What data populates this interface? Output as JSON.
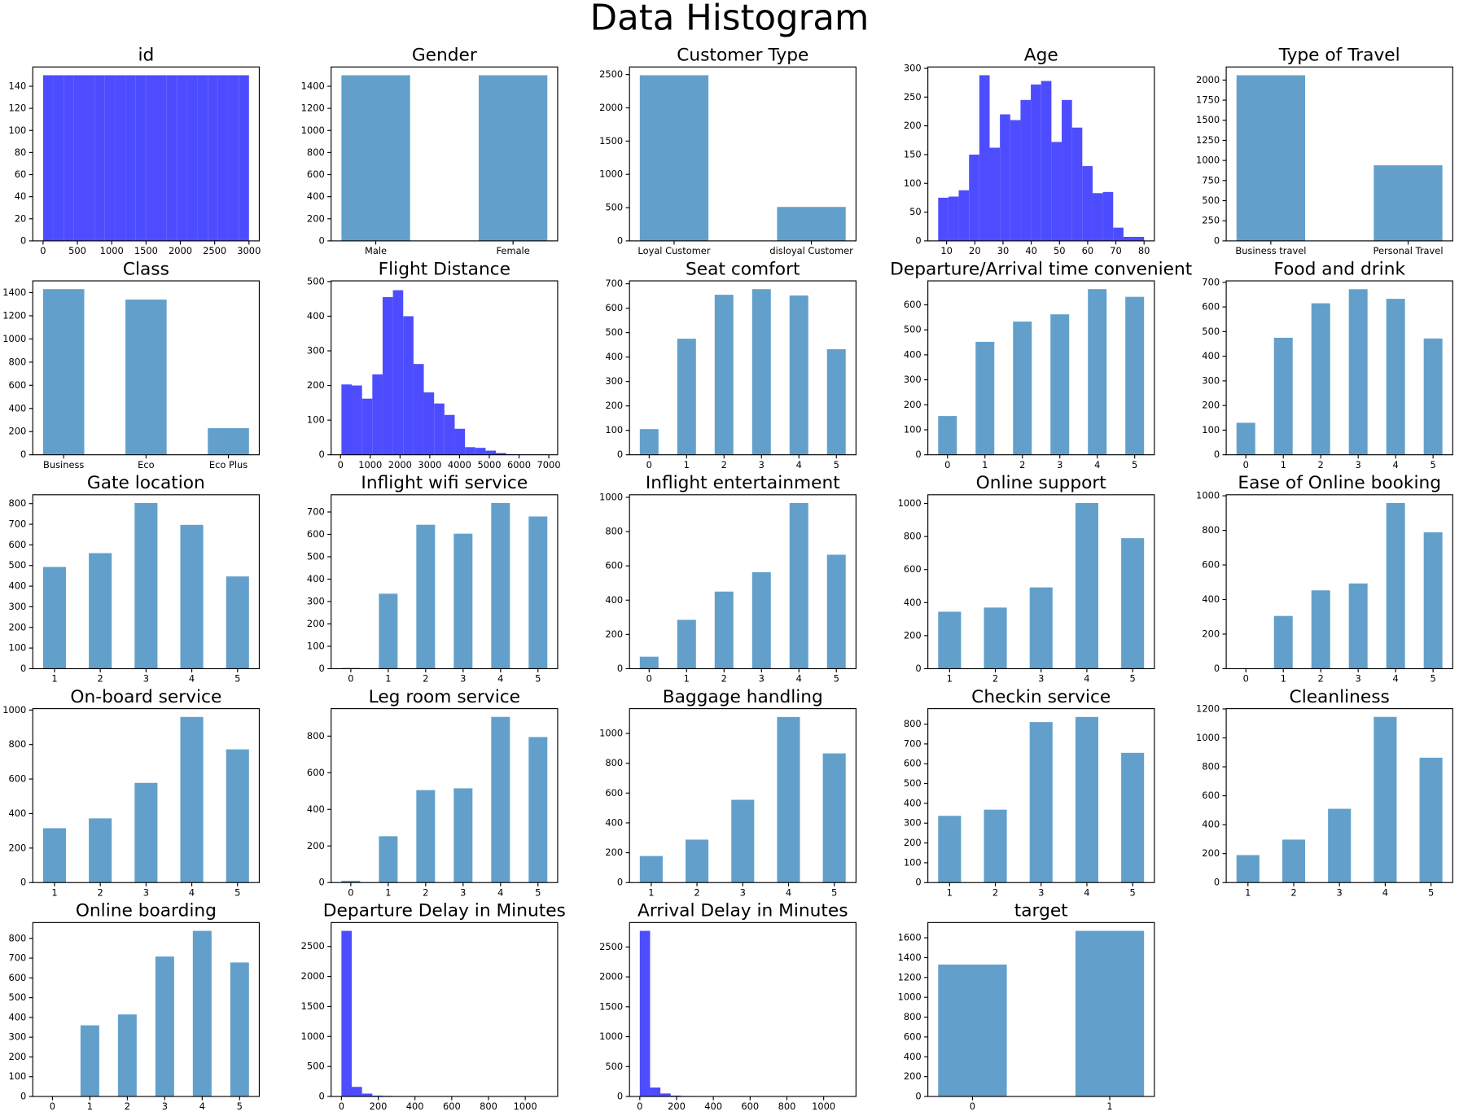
{
  "title": "Data Histogram",
  "chart_data": [
    {
      "type": "histogram",
      "title": "id",
      "color": "#4d4dff",
      "bins": [
        0,
        150,
        300,
        450,
        600,
        750,
        900,
        1050,
        1200,
        1350,
        1500,
        1650,
        1800,
        1950,
        2100,
        2250,
        2400,
        2550,
        2700,
        2850,
        3000
      ],
      "values": [
        150,
        150,
        150,
        150,
        150,
        150,
        150,
        150,
        150,
        150,
        150,
        150,
        150,
        150,
        150,
        150,
        150,
        150,
        150,
        150
      ],
      "xlim": [
        -150,
        3150
      ],
      "xticks": [
        0,
        500,
        1000,
        1500,
        2000,
        2500,
        3000
      ],
      "ylim": [
        0,
        157.5
      ],
      "yticks": [
        0,
        20,
        40,
        60,
        80,
        100,
        120,
        140
      ]
    },
    {
      "type": "bar",
      "title": "Gender",
      "color": "#62a0cb",
      "categories": [
        "Male",
        "Female"
      ],
      "values": [
        1500,
        1500
      ],
      "ylim": [
        0,
        1575
      ],
      "yticks": [
        0,
        200,
        400,
        600,
        800,
        1000,
        1200,
        1400
      ]
    },
    {
      "type": "bar",
      "title": "Customer Type",
      "color": "#62a0cb",
      "categories": [
        "Loyal Customer",
        "disloyal Customer"
      ],
      "values": [
        2490,
        510
      ],
      "ylim": [
        0,
        2614.5
      ],
      "yticks": [
        0,
        500,
        1000,
        1500,
        2000,
        2500
      ]
    },
    {
      "type": "histogram",
      "title": "Age",
      "color": "#4d4dff",
      "bins": [
        7,
        10.65,
        14.3,
        17.95,
        21.6,
        25.25,
        28.9,
        32.55,
        36.2,
        39.85,
        43.5,
        47.15,
        50.8,
        54.45,
        58.1,
        61.75,
        65.4,
        69.05,
        72.7,
        76.35,
        80
      ],
      "values": [
        75,
        77,
        88,
        150,
        288,
        162,
        220,
        210,
        245,
        272,
        278,
        172,
        245,
        197,
        130,
        83,
        85,
        23,
        7,
        7
      ],
      "xlim": [
        3.35,
        83.65
      ],
      "xticks": [
        10,
        20,
        30,
        40,
        50,
        60,
        70,
        80
      ],
      "ylim": [
        0,
        302.4
      ],
      "yticks": [
        0,
        50,
        100,
        150,
        200,
        250,
        300
      ]
    },
    {
      "type": "bar",
      "title": "Type of Travel",
      "color": "#62a0cb",
      "categories": [
        "Business travel",
        "Personal Travel"
      ],
      "values": [
        2060,
        940
      ],
      "ylim": [
        0,
        2163
      ],
      "yticks": [
        0,
        250,
        500,
        750,
        1000,
        1250,
        1500,
        1750,
        2000
      ]
    },
    {
      "type": "bar",
      "title": "Class",
      "color": "#62a0cb",
      "categories": [
        "Business",
        "Eco",
        "Eco Plus"
      ],
      "values": [
        1430,
        1340,
        230
      ],
      "ylim": [
        0,
        1501.5
      ],
      "yticks": [
        0,
        200,
        400,
        600,
        800,
        1000,
        1200,
        1400
      ]
    },
    {
      "type": "histogram",
      "title": "Flight Distance",
      "color": "#4d4dff",
      "bins": [
        31,
        377,
        723,
        1069,
        1415,
        1761,
        2107,
        2453,
        2799,
        3145,
        3491,
        3837,
        4183,
        4529,
        4875,
        5221,
        5567,
        5913,
        6259,
        6605,
        6951
      ],
      "values": [
        203,
        200,
        162,
        232,
        455,
        475,
        400,
        262,
        180,
        148,
        115,
        75,
        22,
        20,
        12,
        5,
        2,
        1,
        1,
        1
      ],
      "xlim": [
        -315,
        7297
      ],
      "xticks": [
        0,
        1000,
        2000,
        3000,
        4000,
        5000,
        6000,
        7000
      ],
      "ylim": [
        0,
        502
      ],
      "yticks": [
        0,
        100,
        200,
        300,
        400,
        500
      ]
    },
    {
      "type": "bar",
      "title": "Seat comfort",
      "color": "#62a0cb",
      "categories": [
        "0",
        "1",
        "2",
        "3",
        "4",
        "5"
      ],
      "values": [
        105,
        475,
        655,
        678,
        652,
        432
      ],
      "ylim": [
        0,
        712
      ],
      "yticks": [
        0,
        100,
        200,
        300,
        400,
        500,
        600,
        700
      ]
    },
    {
      "type": "bar",
      "title": "Departure/Arrival time convenient",
      "color": "#62a0cb",
      "categories": [
        "0",
        "1",
        "2",
        "3",
        "4",
        "5"
      ],
      "values": [
        155,
        452,
        533,
        562,
        663,
        632
      ],
      "ylim": [
        0,
        696
      ],
      "yticks": [
        0,
        100,
        200,
        300,
        400,
        500,
        600
      ]
    },
    {
      "type": "bar",
      "title": "Food and drink",
      "color": "#62a0cb",
      "categories": [
        "0",
        "1",
        "2",
        "3",
        "4",
        "5"
      ],
      "values": [
        130,
        475,
        615,
        672,
        633,
        472
      ],
      "ylim": [
        0,
        706
      ],
      "yticks": [
        0,
        100,
        200,
        300,
        400,
        500,
        600,
        700
      ]
    },
    {
      "type": "bar",
      "title": "Gate location",
      "color": "#62a0cb",
      "categories": [
        "1",
        "2",
        "3",
        "4",
        "5"
      ],
      "values": [
        493,
        560,
        803,
        697,
        447
      ],
      "ylim": [
        0,
        843
      ],
      "yticks": [
        0,
        100,
        200,
        300,
        400,
        500,
        600,
        700,
        800
      ]
    },
    {
      "type": "bar",
      "title": "Inflight wifi service",
      "color": "#62a0cb",
      "categories": [
        "0",
        "1",
        "2",
        "3",
        "4",
        "5"
      ],
      "values": [
        3,
        335,
        643,
        603,
        740,
        680
      ],
      "ylim": [
        0,
        777
      ],
      "yticks": [
        0,
        100,
        200,
        300,
        400,
        500,
        600,
        700
      ]
    },
    {
      "type": "bar",
      "title": "Inflight entertainment",
      "color": "#62a0cb",
      "categories": [
        "0",
        "1",
        "2",
        "3",
        "4",
        "5"
      ],
      "values": [
        70,
        285,
        450,
        563,
        967,
        665
      ],
      "ylim": [
        0,
        1015
      ],
      "yticks": [
        0,
        200,
        400,
        600,
        800,
        1000
      ]
    },
    {
      "type": "bar",
      "title": "Online support",
      "color": "#62a0cb",
      "categories": [
        "1",
        "2",
        "3",
        "4",
        "5"
      ],
      "values": [
        345,
        370,
        492,
        1003,
        790
      ],
      "ylim": [
        0,
        1053
      ],
      "yticks": [
        0,
        200,
        400,
        600,
        800,
        1000
      ]
    },
    {
      "type": "bar",
      "title": "Ease of Online booking",
      "color": "#62a0cb",
      "categories": [
        "0",
        "1",
        "2",
        "3",
        "4",
        "5"
      ],
      "values": [
        2,
        305,
        453,
        493,
        958,
        789
      ],
      "ylim": [
        0,
        1006
      ],
      "yticks": [
        0,
        200,
        400,
        600,
        800,
        1000
      ]
    },
    {
      "type": "bar",
      "title": "On-board service",
      "color": "#62a0cb",
      "categories": [
        "1",
        "2",
        "3",
        "4",
        "5"
      ],
      "values": [
        315,
        372,
        578,
        960,
        772
      ],
      "ylim": [
        0,
        1008
      ],
      "yticks": [
        0,
        200,
        400,
        600,
        800,
        1000
      ]
    },
    {
      "type": "bar",
      "title": "Leg room service",
      "color": "#62a0cb",
      "categories": [
        "0",
        "1",
        "2",
        "3",
        "4",
        "5"
      ],
      "values": [
        10,
        253,
        505,
        515,
        905,
        795
      ],
      "ylim": [
        0,
        950
      ],
      "yticks": [
        0,
        200,
        400,
        600,
        800
      ]
    },
    {
      "type": "bar",
      "title": "Baggage handling",
      "color": "#62a0cb",
      "categories": [
        "1",
        "2",
        "3",
        "4",
        "5"
      ],
      "values": [
        178,
        288,
        555,
        1110,
        866
      ],
      "ylim": [
        0,
        1166
      ],
      "yticks": [
        0,
        200,
        400,
        600,
        800,
        1000
      ]
    },
    {
      "type": "bar",
      "title": "Checkin service",
      "color": "#62a0cb",
      "categories": [
        "1",
        "2",
        "3",
        "4",
        "5"
      ],
      "values": [
        337,
        368,
        810,
        836,
        655
      ],
      "ylim": [
        0,
        878
      ],
      "yticks": [
        0,
        100,
        200,
        300,
        400,
        500,
        600,
        700,
        800
      ]
    },
    {
      "type": "bar",
      "title": "Cleanliness",
      "color": "#62a0cb",
      "categories": [
        "1",
        "2",
        "3",
        "4",
        "5"
      ],
      "values": [
        190,
        297,
        510,
        1145,
        863
      ],
      "ylim": [
        0,
        1202
      ],
      "yticks": [
        0,
        200,
        400,
        600,
        800,
        1000,
        1200
      ]
    },
    {
      "type": "bar",
      "title": "Online boarding",
      "color": "#62a0cb",
      "categories": [
        "0",
        "1",
        "2",
        "3",
        "4",
        "5"
      ],
      "values": [
        2,
        360,
        415,
        708,
        838,
        678
      ],
      "ylim": [
        0,
        880
      ],
      "yticks": [
        0,
        100,
        200,
        300,
        400,
        500,
        600,
        700,
        800
      ]
    },
    {
      "type": "histogram",
      "title": "Departure Delay in Minutes",
      "color": "#4d4dff",
      "bins": [
        0,
        56,
        112,
        168,
        224,
        280,
        336,
        392,
        448,
        504,
        560,
        616,
        672,
        728,
        784,
        840,
        896,
        952,
        1008,
        1064,
        1120
      ],
      "values": [
        2760,
        160,
        48,
        15,
        10,
        3,
        2,
        1,
        1,
        0,
        0,
        0,
        0,
        0,
        0,
        0,
        0,
        0,
        0,
        1
      ],
      "xlim": [
        -56,
        1176
      ],
      "xticks": [
        0,
        200,
        400,
        600,
        800,
        1000
      ],
      "ylim": [
        0,
        2898
      ],
      "yticks": [
        0,
        500,
        1000,
        1500,
        2000,
        2500
      ]
    },
    {
      "type": "histogram",
      "title": "Arrival Delay in Minutes",
      "color": "#4d4dff",
      "bins": [
        0,
        56,
        112,
        168,
        224,
        280,
        336,
        392,
        448,
        504,
        560,
        616,
        672,
        728,
        784,
        840,
        896,
        952,
        1008,
        1064,
        1120
      ],
      "values": [
        2770,
        150,
        50,
        15,
        8,
        3,
        2,
        1,
        0,
        0,
        0,
        0,
        0,
        0,
        0,
        0,
        0,
        0,
        0,
        1
      ],
      "xlim": [
        -56,
        1176
      ],
      "xticks": [
        0,
        200,
        400,
        600,
        800,
        1000
      ],
      "ylim": [
        0,
        2908.5
      ],
      "yticks": [
        0,
        500,
        1000,
        1500,
        2000,
        2500
      ]
    },
    {
      "type": "bar",
      "title": "target",
      "color": "#62a0cb",
      "categories": [
        "0",
        "1"
      ],
      "values": [
        1330,
        1670
      ],
      "ylim": [
        0,
        1753.5
      ],
      "yticks": [
        0,
        200,
        400,
        600,
        800,
        1000,
        1200,
        1400,
        1600
      ]
    }
  ]
}
